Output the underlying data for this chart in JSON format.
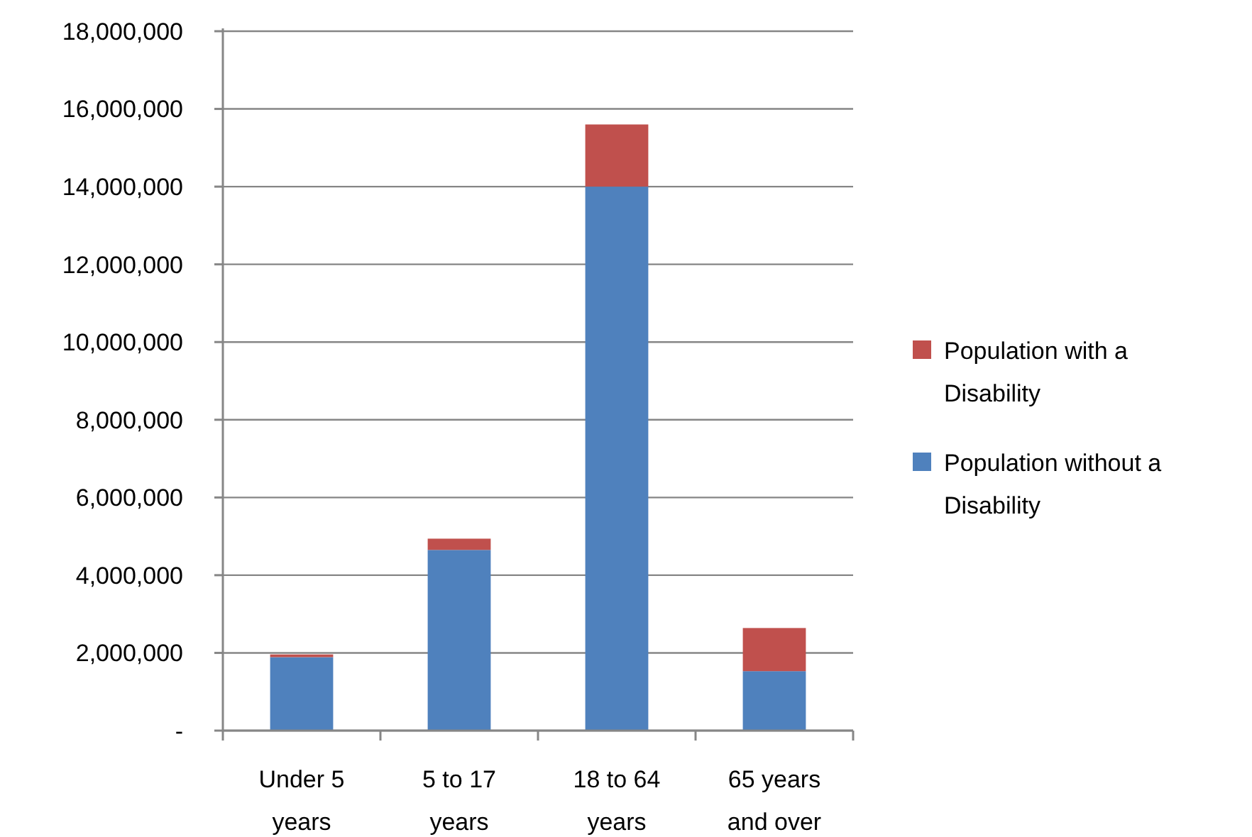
{
  "chart_data": {
    "type": "bar",
    "stacked": true,
    "categories": [
      "Under 5 years",
      "5 to 17 years",
      "18 to 64 years",
      "65 years and over"
    ],
    "series": [
      {
        "name": "Population without a Disability",
        "color": "#4f81bd",
        "values": [
          1890000,
          4650000,
          14000000,
          1530000
        ]
      },
      {
        "name": "Population with a Disability",
        "color": "#c0504d",
        "values": [
          70000,
          290000,
          1600000,
          1110000
        ]
      }
    ],
    "ylim": [
      0,
      18000000
    ],
    "yticks": [
      {
        "value": 0,
        "label": "-"
      },
      {
        "value": 2000000,
        "label": "2,000,000"
      },
      {
        "value": 4000000,
        "label": "4,000,000"
      },
      {
        "value": 6000000,
        "label": "6,000,000"
      },
      {
        "value": 8000000,
        "label": "8,000,000"
      },
      {
        "value": 10000000,
        "label": "10,000,000"
      },
      {
        "value": 12000000,
        "label": "12,000,000"
      },
      {
        "value": 14000000,
        "label": "14,000,000"
      },
      {
        "value": 16000000,
        "label": "16,000,000"
      },
      {
        "value": 18000000,
        "label": "18,000,000"
      }
    ],
    "grid": "y",
    "legend": "right"
  }
}
